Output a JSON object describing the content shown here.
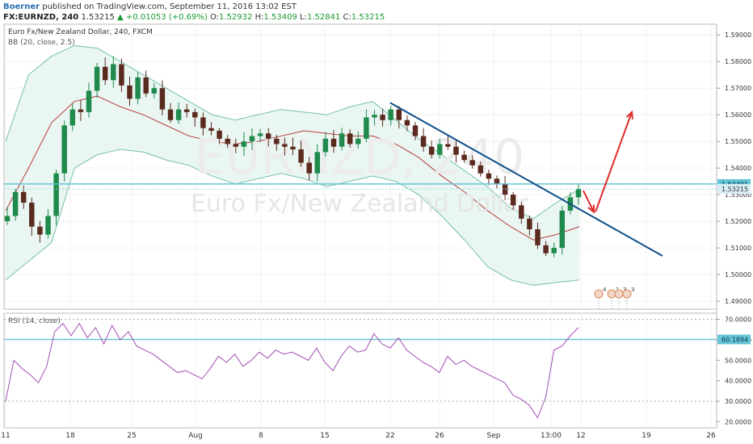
{
  "header": {
    "author": "Boerner",
    "published": "published on TradingView.com, September 11, 2016 13:02 EST",
    "symbol": "FX:EURNZD, 240",
    "last": "1.53215",
    "change": "+0.01053 (+0.69%)",
    "o_label": "O:",
    "o": "1.52932",
    "h_label": "H:",
    "h": "1.53409",
    "l_label": "L:",
    "l": "1.52841",
    "c_label": "C:",
    "c": "1.53215"
  },
  "watermark": {
    "symbol": "EURNZD, 240",
    "name": "Euro Fx/New Zealand Dollar"
  },
  "colors": {
    "band": "#76c2a8",
    "band_fill": "#e9f6f2",
    "candle_up": "#1f8a4c",
    "candle_down": "#5b2a1f",
    "ma": "#b93b3b",
    "trendline": "#0e4f8a",
    "arrow": "#e02b2b",
    "hline": "#66c4d8",
    "rsi": "#a04fb4"
  },
  "chart_data": [
    {
      "type": "candlestick",
      "title": "Euro Fx/New Zealand Dollar, 240, FXCM",
      "indicator": "BB (20, close, 2.5)",
      "ylim": [
        1.487,
        1.594
      ],
      "y_ticks": [
        "1.59000",
        "1.58000",
        "1.57000",
        "1.56000",
        "1.55000",
        "1.54000",
        "1.53000",
        "1.52000",
        "1.51000",
        "1.50000",
        "1.49000"
      ],
      "x_ticks": [
        "11",
        "18",
        "25",
        "Aug",
        "8",
        "15",
        "22",
        "26",
        "Sep",
        "13:00",
        "12",
        "19",
        "26"
      ],
      "price_labels": [
        "1.53401",
        "1.53215"
      ],
      "horizontal_line": 1.53401,
      "close_series": [
        1.522,
        1.531,
        1.527,
        1.518,
        1.515,
        1.522,
        1.538,
        1.556,
        1.562,
        1.561,
        1.569,
        1.578,
        1.573,
        1.579,
        1.571,
        1.566,
        1.574,
        1.568,
        1.57,
        1.562,
        1.558,
        1.562,
        1.561,
        1.559,
        1.555,
        1.554,
        1.551,
        1.549,
        1.548,
        1.55,
        1.552,
        1.553,
        1.551,
        1.549,
        1.548,
        1.547,
        1.542,
        1.538,
        1.546,
        1.551,
        1.548,
        1.553,
        1.549,
        1.551,
        1.559,
        1.56,
        1.558,
        1.562,
        1.558,
        1.556,
        1.552,
        1.548,
        1.545,
        1.549,
        1.548,
        1.545,
        1.543,
        1.541,
        1.538,
        1.536,
        1.534,
        1.53,
        1.526,
        1.521,
        1.517,
        1.511,
        1.508,
        1.51,
        1.524,
        1.529,
        1.532
      ],
      "bb_upper": [
        1.55,
        1.575,
        1.582,
        1.586,
        1.585,
        1.58,
        1.575,
        1.57,
        1.565,
        1.56,
        1.558,
        1.56,
        1.562,
        1.561,
        1.56,
        1.563,
        1.565,
        1.558,
        1.551,
        1.545,
        1.539,
        1.533,
        1.525,
        1.521,
        1.527,
        1.532
      ],
      "bb_lower": [
        1.498,
        1.505,
        1.512,
        1.54,
        1.545,
        1.547,
        1.546,
        1.543,
        1.541,
        1.537,
        1.534,
        1.536,
        1.538,
        1.536,
        1.533,
        1.535,
        1.537,
        1.535,
        1.53,
        1.522,
        1.513,
        1.503,
        1.498,
        1.496,
        1.497,
        1.498
      ],
      "bb_basis": [
        1.524,
        1.54,
        1.557,
        1.565,
        1.567,
        1.563,
        1.56,
        1.556,
        1.552,
        1.55,
        1.549,
        1.55,
        1.552,
        1.554,
        1.553,
        1.552,
        1.552,
        1.549,
        1.544,
        1.537,
        1.531,
        1.524,
        1.518,
        1.513,
        1.515,
        1.518
      ],
      "trendline": {
        "start": [
          "22",
          1.5645
        ],
        "end": [
          "19",
          1.507
        ]
      },
      "arrows": [
        {
          "from": 1.5315,
          "to": 1.5235,
          "direction": "down"
        },
        {
          "from": 1.5235,
          "to": 1.561,
          "direction": "up"
        }
      ],
      "event_markers": [
        "4",
        "1",
        "3",
        "3"
      ]
    },
    {
      "type": "line",
      "title": "RSI (14, close)",
      "ylim": [
        17,
        73
      ],
      "y_ticks": [
        "70.0000",
        "60.0000",
        "50.0000",
        "40.0000",
        "30.0000",
        "20.0000"
      ],
      "current_value": "60.1894",
      "horizontal_line": 60.1894,
      "dashed_levels": [
        70,
        30
      ],
      "values": [
        30,
        50,
        46,
        43,
        39,
        47,
        64,
        68,
        62,
        68,
        61,
        66,
        58,
        67,
        60,
        64,
        57,
        55,
        53,
        50,
        47,
        44,
        45,
        43,
        41,
        46,
        52,
        49,
        53,
        47,
        50,
        54,
        51,
        55,
        53,
        54,
        52,
        50,
        56,
        49,
        45,
        52,
        57,
        54,
        55,
        63,
        58,
        56,
        61,
        55,
        52,
        49,
        47,
        44,
        52,
        48,
        50,
        47,
        45,
        43,
        41,
        39,
        33,
        31,
        28,
        22,
        32,
        55,
        57,
        62,
        66
      ]
    }
  ]
}
